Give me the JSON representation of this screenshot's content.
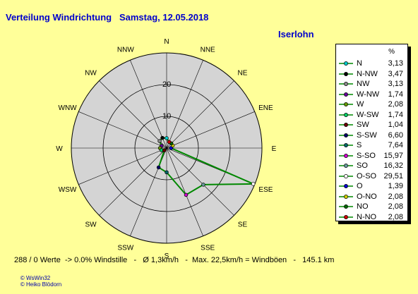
{
  "header": {
    "title": "Verteilung Windrichtung   Samstag, 12.05.2018",
    "station": "Iserlohn"
  },
  "footer": {
    "stats": "288 / 0 Werte  -> 0.0% Windstille   -   Ø 1,3km/h   -  Max. 22,5km/h = Windböen   -   145.1 km",
    "credit_1": "© WsWin32",
    "credit_2": "© Heiko Blödorn"
  },
  "chart_data": {
    "type": "radar",
    "title": "Verteilung Windrichtung   Samstag, 12.05.2018",
    "unit": "%",
    "rmax": 30,
    "ring_ticks": [
      10,
      20
    ],
    "grid": true,
    "legend_position": "right",
    "compass_labels": [
      "N",
      "NNE",
      "NE",
      "ENE",
      "E",
      "ESE",
      "SE",
      "SSE",
      "S",
      "SSW",
      "SW",
      "WSW",
      "W",
      "WNW",
      "NW",
      "NNW"
    ],
    "series": [
      {
        "name": "N",
        "label": "N",
        "value": 3.13,
        "value_text": "3,13",
        "angle": 0,
        "color": "#00cccc"
      },
      {
        "name": "N-NW",
        "label": "NNW",
        "value": 3.47,
        "value_text": "3,47",
        "angle": 337.5,
        "color": "#000000"
      },
      {
        "name": "NW",
        "label": "NW",
        "value": 3.13,
        "value_text": "3,13",
        "angle": 315,
        "color": "#888888"
      },
      {
        "name": "W-NW",
        "label": "WNW",
        "value": 1.74,
        "value_text": "1,74",
        "angle": 292.5,
        "color": "#660099"
      },
      {
        "name": "W",
        "label": "W",
        "value": 2.08,
        "value_text": "2,08",
        "angle": 270,
        "color": "#669900"
      },
      {
        "name": "W-SW",
        "label": "WSW",
        "value": 1.74,
        "value_text": "1,74",
        "angle": 247.5,
        "color": "#00cc66"
      },
      {
        "name": "SW",
        "label": "SW",
        "value": 1.04,
        "value_text": "1,04",
        "angle": 225,
        "color": "#660000"
      },
      {
        "name": "S-SW",
        "label": "SSW",
        "value": 6.6,
        "value_text": "6,60",
        "angle": 202.5,
        "color": "#000066"
      },
      {
        "name": "S",
        "label": "S",
        "value": 7.64,
        "value_text": "7,64",
        "angle": 180,
        "color": "#006666"
      },
      {
        "name": "S-SO",
        "label": "SSE",
        "value": 15.97,
        "value_text": "15,97",
        "angle": 157.5,
        "color": "#cc00cc"
      },
      {
        "name": "SO",
        "label": "SE",
        "value": 16.32,
        "value_text": "16,32",
        "angle": 135,
        "color": "#669999"
      },
      {
        "name": "O-SO",
        "label": "ESE",
        "value": 29.51,
        "value_text": "29,51",
        "angle": 112.5,
        "color": "#ffffff"
      },
      {
        "name": "O",
        "label": "E",
        "value": 1.39,
        "value_text": "1,39",
        "angle": 90,
        "color": "#0000cc"
      },
      {
        "name": "O-NO",
        "label": "ENE",
        "value": 2.08,
        "value_text": "2,08",
        "angle": 67.5,
        "color": "#cccc00"
      },
      {
        "name": "NO",
        "label": "NE",
        "value": 2.08,
        "value_text": "2,08",
        "angle": 45,
        "color": "#006600"
      },
      {
        "name": "N-NO",
        "label": "NNE",
        "value": 2.08,
        "value_text": "2,08",
        "angle": 22.5,
        "color": "#cc0000"
      }
    ],
    "line_color": "#008800",
    "background_color": "#d4d4d4"
  }
}
